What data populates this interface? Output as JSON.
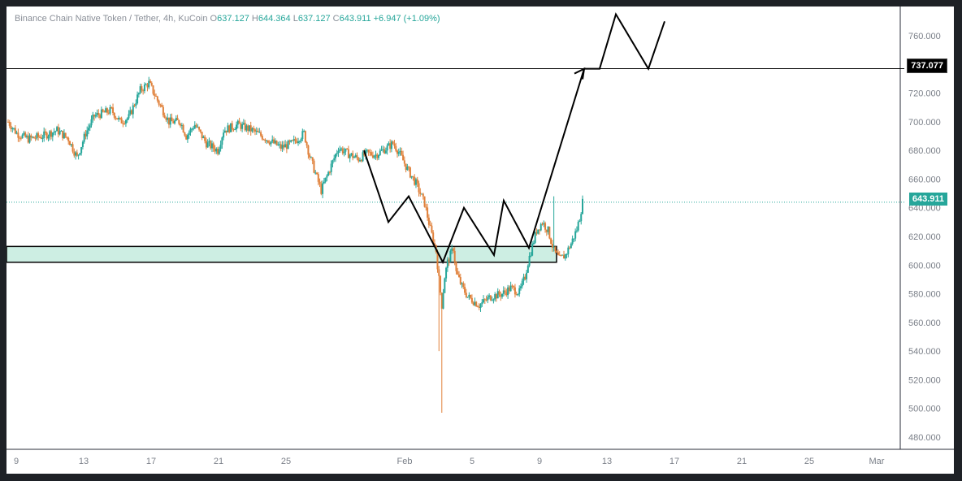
{
  "header": {
    "symbol": "Binance Chain Native Token / Tether, 4h, KuCoin",
    "o_label": "O",
    "o_value": "637.127",
    "h_label": "H",
    "h_value": "644.364",
    "l_label": "L",
    "l_value": "637.127",
    "c_label": "C",
    "c_value": "643.911",
    "change": "+6.947 (+1.09%)"
  },
  "price_tags": {
    "level": "737.077",
    "last": "643.911"
  },
  "colors": {
    "up": "#26a69a",
    "down": "#e0803a",
    "zone_fill": "#cdeee3",
    "text": "#8a8f98",
    "level_tag_bg": "#000000",
    "last_tag_bg": "#26a69a"
  },
  "chart_data": {
    "type": "candlestick",
    "symbol": "BNB/USDT",
    "interval": "4h",
    "y_ticks": [
      "480.000",
      "500.000",
      "520.000",
      "540.000",
      "560.000",
      "580.000",
      "600.000",
      "620.000",
      "640.000",
      "660.000",
      "680.000",
      "700.000",
      "720.000",
      "740.000",
      "760.000"
    ],
    "ylim": [
      470,
      770
    ],
    "x_ticks": [
      "9",
      "13",
      "17",
      "21",
      "25",
      "Feb",
      "5",
      "9",
      "13",
      "17",
      "21",
      "25",
      "Mar"
    ],
    "grid": false,
    "price_path": [
      [
        0,
        700
      ],
      [
        6,
        692
      ],
      [
        14,
        688
      ],
      [
        24,
        690
      ],
      [
        34,
        694
      ],
      [
        42,
        688
      ],
      [
        48,
        675
      ],
      [
        54,
        692
      ],
      [
        60,
        704
      ],
      [
        72,
        708
      ],
      [
        78,
        700
      ],
      [
        84,
        703
      ],
      [
        92,
        722
      ],
      [
        98,
        727
      ],
      [
        104,
        715
      ],
      [
        112,
        700
      ],
      [
        120,
        700
      ],
      [
        124,
        690
      ],
      [
        130,
        698
      ],
      [
        138,
        685
      ],
      [
        146,
        680
      ],
      [
        150,
        694
      ],
      [
        160,
        698
      ],
      [
        170,
        694
      ],
      [
        180,
        688
      ],
      [
        190,
        682
      ],
      [
        198,
        685
      ],
      [
        206,
        692
      ],
      [
        210,
        676
      ],
      [
        218,
        652
      ],
      [
        224,
        667
      ],
      [
        230,
        682
      ],
      [
        236,
        678
      ],
      [
        244,
        674
      ],
      [
        250,
        678
      ],
      [
        256,
        677
      ],
      [
        264,
        682
      ],
      [
        268,
        685
      ],
      [
        272,
        679
      ],
      [
        278,
        667
      ],
      [
        284,
        657
      ],
      [
        290,
        643
      ],
      [
        294,
        625
      ],
      [
        298,
        610
      ],
      [
        300,
        590
      ],
      [
        302,
        572
      ],
      [
        304,
        592
      ],
      [
        306,
        602
      ],
      [
        310,
        612
      ],
      [
        312,
        595
      ],
      [
        316,
        585
      ],
      [
        320,
        578
      ],
      [
        328,
        572
      ],
      [
        336,
        578
      ],
      [
        344,
        580
      ],
      [
        350,
        584
      ],
      [
        356,
        581
      ],
      [
        360,
        592
      ],
      [
        362,
        602
      ],
      [
        366,
        617
      ],
      [
        368,
        624
      ],
      [
        372,
        630
      ],
      [
        376,
        624
      ],
      [
        380,
        610
      ],
      [
        384,
        604
      ],
      [
        388,
        607
      ],
      [
        392,
        615
      ],
      [
        396,
        625
      ],
      [
        398,
        633
      ],
      [
        400,
        644
      ]
    ],
    "support_zone": [
      602,
      613
    ],
    "resistance_level": 737.077,
    "current_price": 643.911,
    "projection_path": [
      [
        440,
        680
      ],
      [
        470,
        630
      ],
      [
        495,
        648
      ],
      [
        537,
        602
      ],
      [
        563,
        640
      ],
      [
        600,
        607
      ],
      [
        612,
        645
      ],
      [
        643,
        612
      ],
      [
        711,
        737
      ],
      [
        730,
        737
      ],
      [
        750,
        775
      ],
      [
        790,
        737
      ],
      [
        810,
        770
      ]
    ],
    "annotations": [
      "737.077"
    ]
  }
}
